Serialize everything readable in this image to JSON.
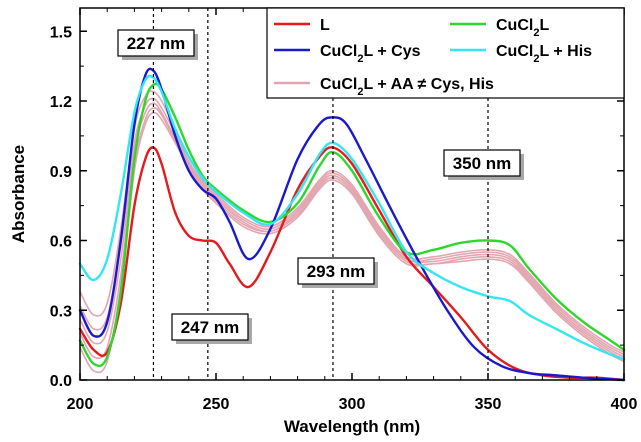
{
  "chart_data": {
    "type": "line",
    "xlabel": "Wavelength (nm)",
    "ylabel": "Absorbance",
    "xlim": [
      200,
      400
    ],
    "ylim": [
      0.0,
      1.6
    ],
    "xticks": [
      200,
      250,
      300,
      350,
      400
    ],
    "xtick_labels": [
      "200",
      "250",
      "300",
      "350",
      "400"
    ],
    "yticks": [
      0.0,
      0.3,
      0.6,
      0.9,
      1.2,
      1.5
    ],
    "ytick_labels": [
      "0.0",
      "0.3",
      "0.6",
      "0.9",
      "1.2",
      "1.5"
    ],
    "grid": false,
    "legend_position": "top-right",
    "reference_lines_x": [
      227,
      247,
      293,
      350
    ],
    "annotations": [
      {
        "text": "227 nm",
        "x": 227
      },
      {
        "text": "247 nm",
        "x": 247
      },
      {
        "text": "293 nm",
        "x": 293
      },
      {
        "text": "350 nm",
        "x": 350
      }
    ],
    "legend": [
      {
        "label": "L",
        "sub": "",
        "suffix": "",
        "color": "#e41a1c"
      },
      {
        "label": "CuCl",
        "sub": "2",
        "suffix": "L",
        "color": "#2ed62e"
      },
      {
        "label": "CuCl",
        "sub": "2",
        "suffix": "L + Cys",
        "color": "#1a1acc"
      },
      {
        "label": "CuCl",
        "sub": "2",
        "suffix": "L + His",
        "color": "#33e6f0"
      },
      {
        "label": "CuCl",
        "sub": "2",
        "suffix": "L + AA ≠ Cys, His",
        "color": "#e3a6b0"
      }
    ],
    "series": [
      {
        "name": "L",
        "color": "#e41a1c",
        "x": [
          200,
          205,
          210,
          215,
          220,
          224,
          227,
          230,
          235,
          240,
          245,
          250,
          255,
          262,
          270,
          280,
          288,
          293,
          300,
          310,
          320,
          330,
          340,
          350,
          360,
          370,
          380,
          390,
          400
        ],
        "y": [
          0.22,
          0.13,
          0.12,
          0.33,
          0.75,
          0.95,
          1.0,
          0.93,
          0.72,
          0.62,
          0.6,
          0.59,
          0.5,
          0.4,
          0.55,
          0.82,
          0.96,
          1.0,
          0.93,
          0.73,
          0.53,
          0.4,
          0.27,
          0.13,
          0.05,
          0.02,
          0.01,
          0.01,
          0.0
        ]
      },
      {
        "name": "CuCl2L",
        "color": "#2ed62e",
        "x": [
          200,
          205,
          210,
          215,
          220,
          224,
          227,
          230,
          235,
          240,
          245,
          250,
          260,
          270,
          280,
          288,
          293,
          300,
          310,
          320,
          330,
          340,
          350,
          358,
          365,
          375,
          385,
          395,
          400
        ],
        "y": [
          0.17,
          0.07,
          0.1,
          0.38,
          0.95,
          1.2,
          1.27,
          1.25,
          1.13,
          0.99,
          0.88,
          0.82,
          0.73,
          0.68,
          0.76,
          0.92,
          0.98,
          0.9,
          0.7,
          0.55,
          0.56,
          0.59,
          0.6,
          0.58,
          0.48,
          0.35,
          0.25,
          0.17,
          0.13
        ]
      },
      {
        "name": "CuCl2L + Cys",
        "color": "#1a1acc",
        "x": [
          200,
          205,
          210,
          215,
          220,
          224,
          227,
          230,
          235,
          240,
          245,
          250,
          255,
          262,
          270,
          280,
          288,
          293,
          298,
          305,
          315,
          325,
          335,
          345,
          355,
          365,
          375,
          385,
          400
        ],
        "y": [
          0.3,
          0.19,
          0.25,
          0.6,
          1.1,
          1.31,
          1.33,
          1.25,
          1.05,
          0.9,
          0.82,
          0.78,
          0.68,
          0.52,
          0.65,
          0.95,
          1.1,
          1.13,
          1.1,
          0.95,
          0.72,
          0.5,
          0.3,
          0.14,
          0.06,
          0.03,
          0.02,
          0.01,
          0.0
        ]
      },
      {
        "name": "CuCl2L + His",
        "color": "#33e6f0",
        "x": [
          200,
          205,
          210,
          215,
          220,
          224,
          227,
          230,
          235,
          240,
          245,
          250,
          260,
          270,
          280,
          288,
          293,
          300,
          310,
          320,
          330,
          340,
          350,
          358,
          365,
          375,
          385,
          395,
          400
        ],
        "y": [
          0.5,
          0.43,
          0.52,
          0.8,
          1.15,
          1.29,
          1.3,
          1.24,
          1.08,
          0.96,
          0.87,
          0.81,
          0.72,
          0.67,
          0.8,
          0.97,
          1.02,
          0.95,
          0.76,
          0.55,
          0.46,
          0.4,
          0.36,
          0.34,
          0.28,
          0.22,
          0.16,
          0.11,
          0.09
        ]
      },
      {
        "name": "CuCl2L + AA ≠ Cys, His (1)",
        "color": "#e3a6b0",
        "x": [
          200,
          205,
          210,
          215,
          220,
          224,
          227,
          230,
          235,
          240,
          245,
          250,
          260,
          270,
          280,
          288,
          293,
          300,
          310,
          320,
          330,
          340,
          350,
          358,
          365,
          375,
          385,
          395,
          400
        ],
        "y": [
          0.38,
          0.28,
          0.33,
          0.65,
          1.08,
          1.22,
          1.24,
          1.2,
          1.08,
          0.96,
          0.86,
          0.8,
          0.7,
          0.66,
          0.74,
          0.86,
          0.9,
          0.84,
          0.66,
          0.53,
          0.53,
          0.55,
          0.56,
          0.54,
          0.46,
          0.33,
          0.23,
          0.15,
          0.12
        ]
      },
      {
        "name": "CuCl2L + AA ≠ Cys, His (2)",
        "color": "#e3a6b0",
        "x": [
          200,
          205,
          210,
          215,
          220,
          224,
          227,
          230,
          235,
          240,
          245,
          250,
          260,
          270,
          280,
          288,
          293,
          300,
          310,
          320,
          330,
          340,
          350,
          358,
          365,
          375,
          385,
          395,
          400
        ],
        "y": [
          0.32,
          0.22,
          0.27,
          0.58,
          1.02,
          1.18,
          1.21,
          1.17,
          1.06,
          0.94,
          0.85,
          0.79,
          0.69,
          0.65,
          0.73,
          0.85,
          0.89,
          0.83,
          0.65,
          0.52,
          0.52,
          0.54,
          0.55,
          0.53,
          0.45,
          0.32,
          0.22,
          0.14,
          0.11
        ]
      },
      {
        "name": "CuCl2L + AA ≠ Cys, His (3)",
        "color": "#e3a6b0",
        "x": [
          200,
          205,
          210,
          215,
          220,
          224,
          227,
          230,
          235,
          240,
          245,
          250,
          260,
          270,
          280,
          288,
          293,
          300,
          310,
          320,
          330,
          340,
          350,
          358,
          365,
          375,
          385,
          395,
          400
        ],
        "y": [
          0.26,
          0.16,
          0.21,
          0.52,
          0.98,
          1.15,
          1.19,
          1.15,
          1.04,
          0.93,
          0.84,
          0.78,
          0.68,
          0.64,
          0.72,
          0.84,
          0.88,
          0.82,
          0.64,
          0.52,
          0.51,
          0.53,
          0.54,
          0.52,
          0.44,
          0.31,
          0.21,
          0.13,
          0.1
        ]
      },
      {
        "name": "CuCl2L + AA ≠ Cys, His (4)",
        "color": "#e3a6b0",
        "x": [
          200,
          205,
          210,
          215,
          220,
          224,
          227,
          230,
          235,
          240,
          245,
          250,
          260,
          270,
          280,
          288,
          293,
          300,
          310,
          320,
          330,
          340,
          350,
          358,
          365,
          375,
          385,
          395,
          400
        ],
        "y": [
          0.2,
          0.1,
          0.14,
          0.45,
          0.93,
          1.12,
          1.17,
          1.14,
          1.03,
          0.92,
          0.83,
          0.77,
          0.67,
          0.64,
          0.71,
          0.83,
          0.87,
          0.81,
          0.63,
          0.51,
          0.5,
          0.52,
          0.53,
          0.51,
          0.43,
          0.3,
          0.2,
          0.12,
          0.09
        ]
      },
      {
        "name": "CuCl2L + AA ≠ Cys, His (5)",
        "color": "#e3a6b0",
        "x": [
          200,
          205,
          210,
          215,
          220,
          224,
          227,
          230,
          235,
          240,
          245,
          250,
          260,
          270,
          280,
          288,
          293,
          300,
          310,
          320,
          330,
          340,
          350,
          358,
          365,
          375,
          385,
          395,
          400
        ],
        "y": [
          0.14,
          0.04,
          0.08,
          0.4,
          0.9,
          1.1,
          1.15,
          1.12,
          1.02,
          0.91,
          0.82,
          0.76,
          0.66,
          0.63,
          0.7,
          0.82,
          0.86,
          0.8,
          0.62,
          0.5,
          0.5,
          0.51,
          0.52,
          0.5,
          0.42,
          0.29,
          0.19,
          0.11,
          0.08
        ]
      }
    ]
  }
}
